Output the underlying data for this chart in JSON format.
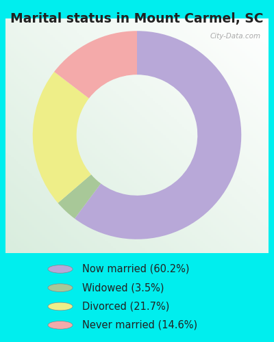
{
  "title": "Marital status in Mount Carmel, SC",
  "slices": [
    60.2,
    3.5,
    21.7,
    14.6
  ],
  "labels": [
    "Now married (60.2%)",
    "Widowed (3.5%)",
    "Divorced (21.7%)",
    "Never married (14.6%)"
  ],
  "colors": [
    "#b8a8d8",
    "#a8c898",
    "#eeee88",
    "#f4aaaa"
  ],
  "chart_bg": "#d8eedc",
  "outer_bg": "#00eeee",
  "title_color": "#222222",
  "title_fontsize": 13.5,
  "legend_fontsize": 10.5,
  "watermark_text": "City-Data.com",
  "donut_width": 0.42,
  "start_angle": 90
}
